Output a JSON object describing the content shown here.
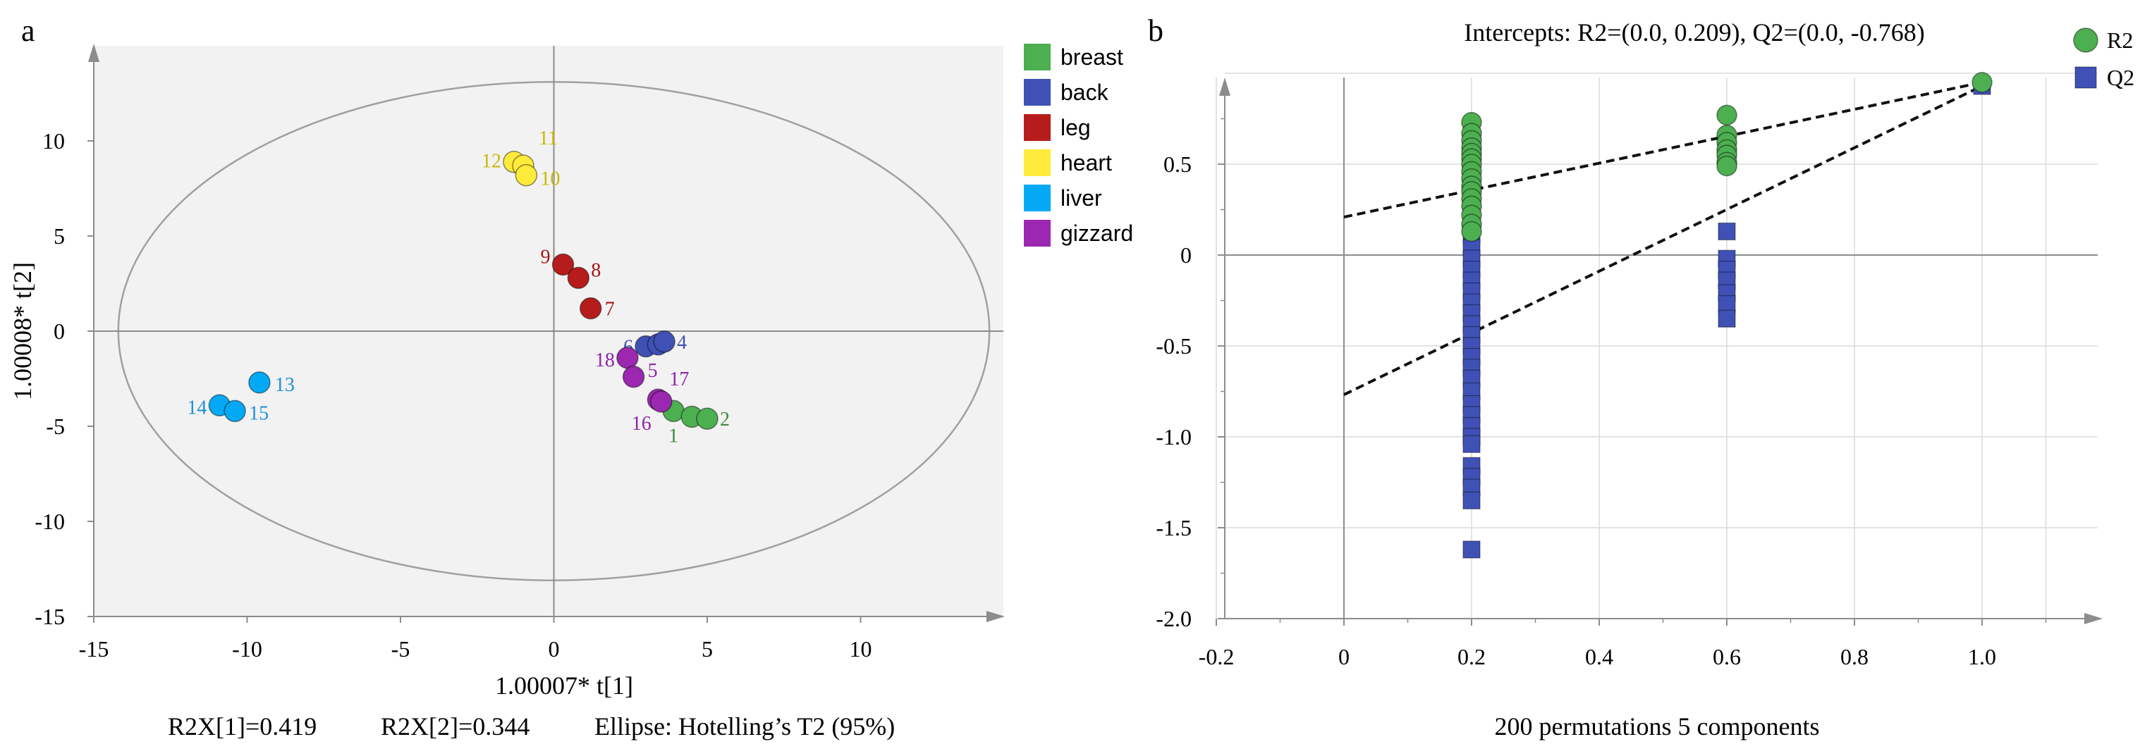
{
  "chart_data": [
    {
      "panel_label": "a",
      "type": "scatter",
      "xlabel": "1.00007* t[1]",
      "ylabel": "1.00008* t[2]",
      "xlim": [
        -15,
        14.5
      ],
      "ylim": [
        -15,
        15
      ],
      "xticks": [
        -15,
        -10,
        -5,
        0,
        5,
        10
      ],
      "yticks": [
        -15,
        -10,
        -5,
        0,
        5,
        10
      ],
      "grid": false,
      "legend_position": "right",
      "ellipse": {
        "center": [
          0,
          0
        ],
        "x_radius": 14.2,
        "y_radius": 13.1
      },
      "stats": [
        "R2X[1]=0.419",
        "R2X[2]=0.344",
        "Ellipse: Hotelling’s T2 (95%)"
      ],
      "colors": {
        "breast": "#4caf50",
        "back": "#3f51b5",
        "leg": "#b71c1c",
        "heart": "#ffeb3b",
        "liver": "#03a9f4",
        "gizzard": "#9c27b0"
      },
      "label_colors": {
        "breast": "#3d8b3d",
        "back": "#3f51b5",
        "leg": "#a31515",
        "heart": "#c7b800",
        "liver": "#1e90d8",
        "gizzard": "#8e24aa"
      },
      "series": [
        {
          "name": "breast",
          "points": [
            {
              "label": "1",
              "x": 3.9,
              "y": -4.2
            },
            {
              "label": "",
              "x": 4.5,
              "y": -4.5
            },
            {
              "label": "2",
              "x": 5.0,
              "y": -4.6
            }
          ]
        },
        {
          "name": "back",
          "points": [
            {
              "label": "6",
              "x": 3.0,
              "y": -0.8
            },
            {
              "label": "",
              "x": 3.4,
              "y": -0.7
            },
            {
              "label": "4",
              "x": 3.6,
              "y": -0.55
            }
          ]
        },
        {
          "name": "leg",
          "points": [
            {
              "label": "9",
              "x": 0.3,
              "y": 3.5
            },
            {
              "label": "8",
              "x": 0.8,
              "y": 2.8
            },
            {
              "label": "7",
              "x": 1.2,
              "y": 1.2
            }
          ]
        },
        {
          "name": "heart",
          "points": [
            {
              "label": "12",
              "x": -1.3,
              "y": 8.9
            },
            {
              "label": "11",
              "x": -1.0,
              "y": 8.7
            },
            {
              "label": "10",
              "x": -0.9,
              "y": 8.2
            }
          ]
        },
        {
          "name": "liver",
          "points": [
            {
              "label": "13",
              "x": -9.6,
              "y": -2.7
            },
            {
              "label": "14",
              "x": -10.9,
              "y": -3.9
            },
            {
              "label": "15",
              "x": -10.4,
              "y": -4.2
            }
          ]
        },
        {
          "name": "gizzard",
          "points": [
            {
              "label": "18",
              "x": 2.4,
              "y": -1.4
            },
            {
              "label": "5",
              "x": 2.6,
              "y": -2.4
            },
            {
              "label": "17",
              "x": 3.4,
              "y": -3.6
            },
            {
              "label": "16",
              "x": 3.5,
              "y": -3.7
            }
          ]
        }
      ]
    },
    {
      "panel_label": "b",
      "type": "scatter",
      "title": "Intercepts: R2=(0.0, 0.209), Q2=(0.0, -0.768)",
      "xlabel": "200 permutations 5 components",
      "xlim": [
        -0.25,
        1.2
      ],
      "ylim": [
        -2.0,
        1.0
      ],
      "xticks": [
        -0.2,
        0,
        0.2,
        0.4,
        0.6,
        0.8,
        1.0
      ],
      "xtick_labels": [
        "-0.2",
        "0",
        "0.2",
        "0.4",
        "0.6",
        "0.8",
        "1.0"
      ],
      "yticks": [
        -2.0,
        -1.5,
        -1.0,
        -0.5,
        0,
        0.5
      ],
      "ytick_labels": [
        "-2.0",
        "-1.5",
        "-1.0",
        "-0.5",
        "0",
        "0.5"
      ],
      "grid": true,
      "legend_position": "top-right",
      "colors": {
        "R2": "#4caf50",
        "Q2": "#3f51b5"
      },
      "series": [
        {
          "name": "R2",
          "marker": "circle",
          "points": [
            [
              0.2,
              0.73
            ],
            [
              0.2,
              0.67
            ],
            [
              0.2,
              0.63
            ],
            [
              0.2,
              0.59
            ],
            [
              0.2,
              0.56
            ],
            [
              0.2,
              0.53
            ],
            [
              0.2,
              0.5
            ],
            [
              0.2,
              0.46
            ],
            [
              0.2,
              0.42
            ],
            [
              0.2,
              0.38
            ],
            [
              0.2,
              0.35
            ],
            [
              0.2,
              0.31
            ],
            [
              0.2,
              0.27
            ],
            [
              0.2,
              0.22
            ],
            [
              0.2,
              0.17
            ],
            [
              0.2,
              0.13
            ],
            [
              0.6,
              0.77
            ],
            [
              0.6,
              0.66
            ],
            [
              0.6,
              0.62
            ],
            [
              0.6,
              0.58
            ],
            [
              0.6,
              0.55
            ],
            [
              0.6,
              0.51
            ],
            [
              0.6,
              0.49
            ],
            [
              1.0,
              0.95
            ]
          ]
        },
        {
          "name": "Q2",
          "marker": "square",
          "points": [
            [
              0.2,
              0.23
            ],
            [
              0.2,
              0.17
            ],
            [
              0.2,
              0.11
            ],
            [
              0.2,
              0.04
            ],
            [
              0.2,
              -0.02
            ],
            [
              0.2,
              -0.08
            ],
            [
              0.2,
              -0.14
            ],
            [
              0.2,
              -0.2
            ],
            [
              0.2,
              -0.26
            ],
            [
              0.2,
              -0.32
            ],
            [
              0.2,
              -0.38
            ],
            [
              0.2,
              -0.44
            ],
            [
              0.2,
              -0.5
            ],
            [
              0.2,
              -0.56
            ],
            [
              0.2,
              -0.62
            ],
            [
              0.2,
              -0.68
            ],
            [
              0.2,
              -0.75
            ],
            [
              0.2,
              -0.82
            ],
            [
              0.2,
              -0.88
            ],
            [
              0.2,
              -0.94
            ],
            [
              0.2,
              -1.0
            ],
            [
              0.2,
              -1.04
            ],
            [
              0.2,
              -1.16
            ],
            [
              0.2,
              -1.22
            ],
            [
              0.2,
              -1.28
            ],
            [
              0.2,
              -1.35
            ],
            [
              0.2,
              -1.62
            ],
            [
              0.6,
              0.13
            ],
            [
              0.6,
              -0.02
            ],
            [
              0.6,
              -0.08
            ],
            [
              0.6,
              -0.14
            ],
            [
              0.6,
              -0.21
            ],
            [
              0.6,
              -0.27
            ],
            [
              0.6,
              -0.35
            ],
            [
              1.0,
              0.93
            ]
          ]
        }
      ],
      "regression_lines": [
        {
          "name": "R2",
          "x": [
            0.0,
            1.0
          ],
          "y": [
            0.209,
            0.95
          ]
        },
        {
          "name": "Q2",
          "x": [
            0.0,
            1.0
          ],
          "y": [
            -0.768,
            0.93
          ]
        }
      ]
    }
  ]
}
